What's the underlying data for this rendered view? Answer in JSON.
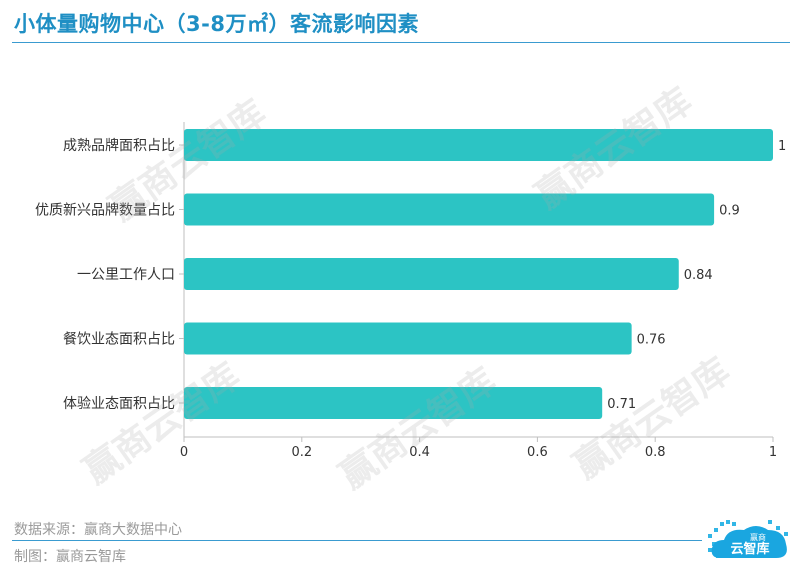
{
  "title": "小体量购物中心（3-8万㎡）客流影响因素",
  "source": "数据来源：赢商大数据中心",
  "maker": "制图：赢商云智库",
  "watermark": "赢商云智库",
  "logo": {
    "text_top": "赢商",
    "text_main": "云智库"
  },
  "colors": {
    "bar": "#2cc4c4",
    "title": "#1f8fc4",
    "rule": "#3a9bd0"
  },
  "chart_data": {
    "type": "bar",
    "orientation": "horizontal",
    "categories": [
      "成熟品牌面积占比",
      "优质新兴品牌数量占比",
      "一公里工作人口",
      "餐饮业态面积占比",
      "体验业态面积占比"
    ],
    "values": [
      1,
      0.9,
      0.84,
      0.76,
      0.71
    ],
    "value_labels": [
      "1",
      "0.9",
      "0.84",
      "0.76",
      "0.71"
    ],
    "xlim": [
      0,
      1
    ],
    "xticks": [
      0,
      0.2,
      0.4,
      0.6,
      0.8,
      1
    ],
    "xtick_labels": [
      "0",
      "0.2",
      "0.4",
      "0.6",
      "0.8",
      "1"
    ],
    "grid": false
  }
}
